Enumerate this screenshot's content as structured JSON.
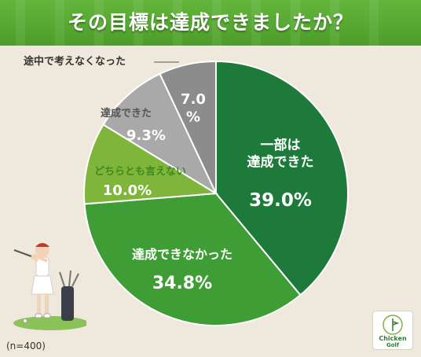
{
  "header": {
    "title": "その目標は達成できましたか？"
  },
  "footer": {
    "n_label": "(n=400)"
  },
  "logo": {
    "line1": "Chicken",
    "line2": "Golf"
  },
  "colors": {
    "banner": "#56a932",
    "slice_1": "#1e7a3a",
    "slice_2": "#3f9d35",
    "slice_3": "#7fb53a",
    "slice_4": "#a9a9a9",
    "slice_5": "#8c8c8c"
  },
  "chart_data": {
    "type": "pie",
    "title": "その目標は達成できましたか？",
    "note": "(n=400)",
    "slices": [
      {
        "label": "一部は\n達成できた",
        "value": 39.0,
        "display": "39.0%",
        "color": "#1e7a3a"
      },
      {
        "label": "達成できなかった",
        "value": 34.8,
        "display": "34.8%",
        "color": "#3f9d35"
      },
      {
        "label": "どちらとも言えない",
        "value": 10.0,
        "display": "10.0%",
        "color": "#7fb53a"
      },
      {
        "label": "達成できた",
        "value": 9.3,
        "display": "9.3%",
        "color": "#a9a9a9"
      },
      {
        "label": "途中で考えなくなった",
        "value": 7.0,
        "display": "7.0\n%",
        "color": "#8c8c8c"
      }
    ]
  }
}
